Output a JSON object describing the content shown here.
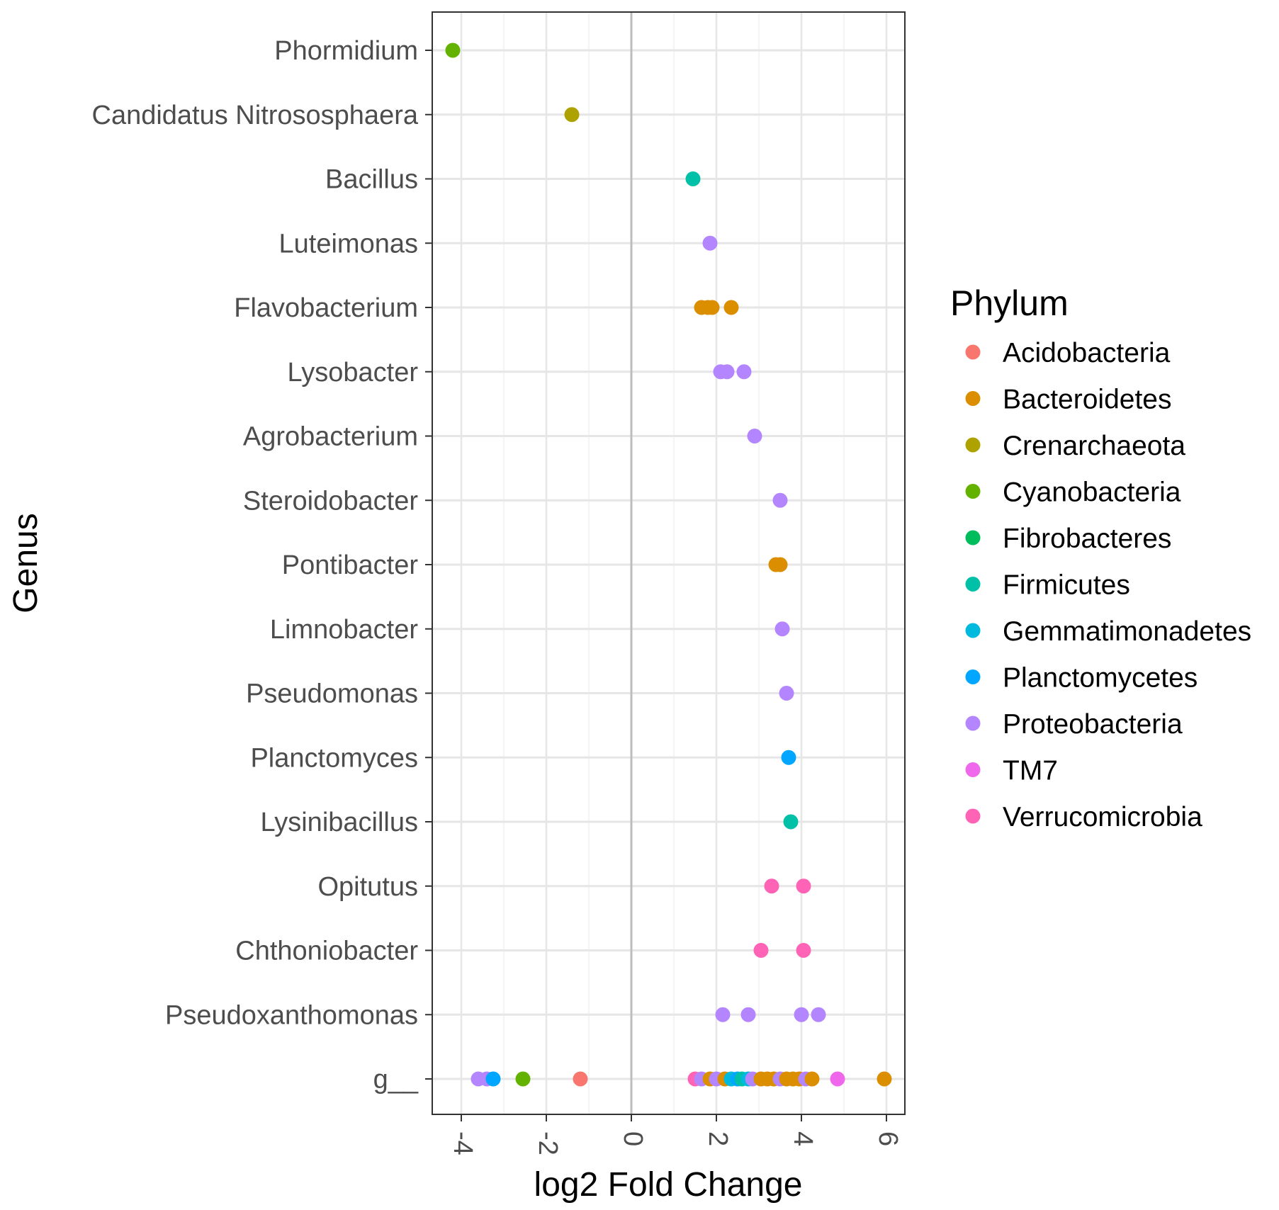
{
  "chart_data": {
    "type": "scatter",
    "title": "",
    "xlabel": "log2 Fold Change",
    "ylabel": "Genus",
    "xlim": [
      -4.5,
      6.5
    ],
    "x_ticks": [
      -4,
      -2,
      0,
      2,
      4,
      6
    ],
    "x_tick_labels": [
      "-4",
      "-2",
      "0",
      "2",
      "4",
      "6"
    ],
    "reference_line_x": 0,
    "grid": true,
    "categories": [
      "Phormidium",
      "Candidatus Nitrososphaera",
      "Bacillus",
      "Luteimonas",
      "Flavobacterium",
      "Lysobacter",
      "Agrobacterium",
      "Steroidobacter",
      "Pontibacter",
      "Limnobacter",
      "Pseudomonas",
      "Planctomyces",
      "Lysinibacillus",
      "Opitutus",
      "Chthoniobacter",
      "Pseudoxanthomonas",
      "g__"
    ],
    "legend": {
      "title": "Phylum",
      "placement": "right",
      "entries": [
        {
          "name": "Acidobacteria",
          "color": "#F8766D"
        },
        {
          "name": "Bacteroidetes",
          "color": "#DB8E00"
        },
        {
          "name": "Crenarchaeota",
          "color": "#AEA200"
        },
        {
          "name": "Cyanobacteria",
          "color": "#64B200"
        },
        {
          "name": "Fibrobacteres",
          "color": "#00BD5C"
        },
        {
          "name": "Firmicutes",
          "color": "#00C1A7"
        },
        {
          "name": "Gemmatimonadetes",
          "color": "#00BADE"
        },
        {
          "name": "Planctomycetes",
          "color": "#00A6FF"
        },
        {
          "name": "Proteobacteria",
          "color": "#B385FF"
        },
        {
          "name": "TM7",
          "color": "#EF67EB"
        },
        {
          "name": "Verrucomicrobia",
          "color": "#FF63B6"
        }
      ]
    },
    "points": [
      {
        "genus": "Phormidium",
        "x": -4.2,
        "phylum": "Cyanobacteria"
      },
      {
        "genus": "Candidatus Nitrososphaera",
        "x": -1.4,
        "phylum": "Crenarchaeota"
      },
      {
        "genus": "Bacillus",
        "x": 1.45,
        "phylum": "Firmicutes"
      },
      {
        "genus": "Luteimonas",
        "x": 1.85,
        "phylum": "Proteobacteria"
      },
      {
        "genus": "Flavobacterium",
        "x": 1.65,
        "phylum": "Bacteroidetes"
      },
      {
        "genus": "Flavobacterium",
        "x": 1.8,
        "phylum": "Bacteroidetes"
      },
      {
        "genus": "Flavobacterium",
        "x": 1.9,
        "phylum": "Bacteroidetes"
      },
      {
        "genus": "Flavobacterium",
        "x": 2.35,
        "phylum": "Bacteroidetes"
      },
      {
        "genus": "Lysobacter",
        "x": 2.1,
        "phylum": "Proteobacteria"
      },
      {
        "genus": "Lysobacter",
        "x": 2.25,
        "phylum": "Proteobacteria"
      },
      {
        "genus": "Lysobacter",
        "x": 2.65,
        "phylum": "Proteobacteria"
      },
      {
        "genus": "Agrobacterium",
        "x": 2.9,
        "phylum": "Proteobacteria"
      },
      {
        "genus": "Steroidobacter",
        "x": 3.5,
        "phylum": "Proteobacteria"
      },
      {
        "genus": "Pontibacter",
        "x": 3.4,
        "phylum": "Bacteroidetes"
      },
      {
        "genus": "Pontibacter",
        "x": 3.5,
        "phylum": "Bacteroidetes"
      },
      {
        "genus": "Limnobacter",
        "x": 3.55,
        "phylum": "Proteobacteria"
      },
      {
        "genus": "Pseudomonas",
        "x": 3.65,
        "phylum": "Proteobacteria"
      },
      {
        "genus": "Planctomyces",
        "x": 3.7,
        "phylum": "Planctomycetes"
      },
      {
        "genus": "Lysinibacillus",
        "x": 3.75,
        "phylum": "Firmicutes"
      },
      {
        "genus": "Opitutus",
        "x": 3.3,
        "phylum": "Verrucomicrobia"
      },
      {
        "genus": "Opitutus",
        "x": 4.05,
        "phylum": "Verrucomicrobia"
      },
      {
        "genus": "Chthoniobacter",
        "x": 3.05,
        "phylum": "Verrucomicrobia"
      },
      {
        "genus": "Chthoniobacter",
        "x": 4.05,
        "phylum": "Verrucomicrobia"
      },
      {
        "genus": "Pseudoxanthomonas",
        "x": 2.15,
        "phylum": "Proteobacteria"
      },
      {
        "genus": "Pseudoxanthomonas",
        "x": 2.75,
        "phylum": "Proteobacteria"
      },
      {
        "genus": "Pseudoxanthomonas",
        "x": 4.0,
        "phylum": "Proteobacteria"
      },
      {
        "genus": "Pseudoxanthomonas",
        "x": 4.4,
        "phylum": "Proteobacteria"
      },
      {
        "genus": "g__",
        "x": -3.6,
        "phylum": "Proteobacteria"
      },
      {
        "genus": "g__",
        "x": -3.4,
        "phylum": "Proteobacteria"
      },
      {
        "genus": "g__",
        "x": -3.25,
        "phylum": "Planctomycetes"
      },
      {
        "genus": "g__",
        "x": -2.55,
        "phylum": "Cyanobacteria"
      },
      {
        "genus": "g__",
        "x": -1.2,
        "phylum": "Acidobacteria"
      },
      {
        "genus": "g__",
        "x": 1.5,
        "phylum": "Verrucomicrobia"
      },
      {
        "genus": "g__",
        "x": 1.65,
        "phylum": "Proteobacteria"
      },
      {
        "genus": "g__",
        "x": 1.85,
        "phylum": "Bacteroidetes"
      },
      {
        "genus": "g__",
        "x": 2.0,
        "phylum": "Proteobacteria"
      },
      {
        "genus": "g__",
        "x": 2.2,
        "phylum": "Bacteroidetes"
      },
      {
        "genus": "g__",
        "x": 2.35,
        "phylum": "Gemmatimonadetes"
      },
      {
        "genus": "g__",
        "x": 2.5,
        "phylum": "Planctomycetes"
      },
      {
        "genus": "g__",
        "x": 2.6,
        "phylum": "Firmicutes"
      },
      {
        "genus": "g__",
        "x": 2.75,
        "phylum": "Gemmatimonadetes"
      },
      {
        "genus": "g__",
        "x": 2.85,
        "phylum": "Proteobacteria"
      },
      {
        "genus": "g__",
        "x": 3.05,
        "phylum": "Bacteroidetes"
      },
      {
        "genus": "g__",
        "x": 3.2,
        "phylum": "Bacteroidetes"
      },
      {
        "genus": "g__",
        "x": 3.35,
        "phylum": "Bacteroidetes"
      },
      {
        "genus": "g__",
        "x": 3.5,
        "phylum": "Proteobacteria"
      },
      {
        "genus": "g__",
        "x": 3.65,
        "phylum": "Bacteroidetes"
      },
      {
        "genus": "g__",
        "x": 3.8,
        "phylum": "Bacteroidetes"
      },
      {
        "genus": "g__",
        "x": 3.95,
        "phylum": "Bacteroidetes"
      },
      {
        "genus": "g__",
        "x": 4.1,
        "phylum": "Proteobacteria"
      },
      {
        "genus": "g__",
        "x": 4.25,
        "phylum": "Bacteroidetes"
      },
      {
        "genus": "g__",
        "x": 4.85,
        "phylum": "TM7"
      },
      {
        "genus": "g__",
        "x": 5.95,
        "phylum": "Bacteroidetes"
      }
    ]
  }
}
